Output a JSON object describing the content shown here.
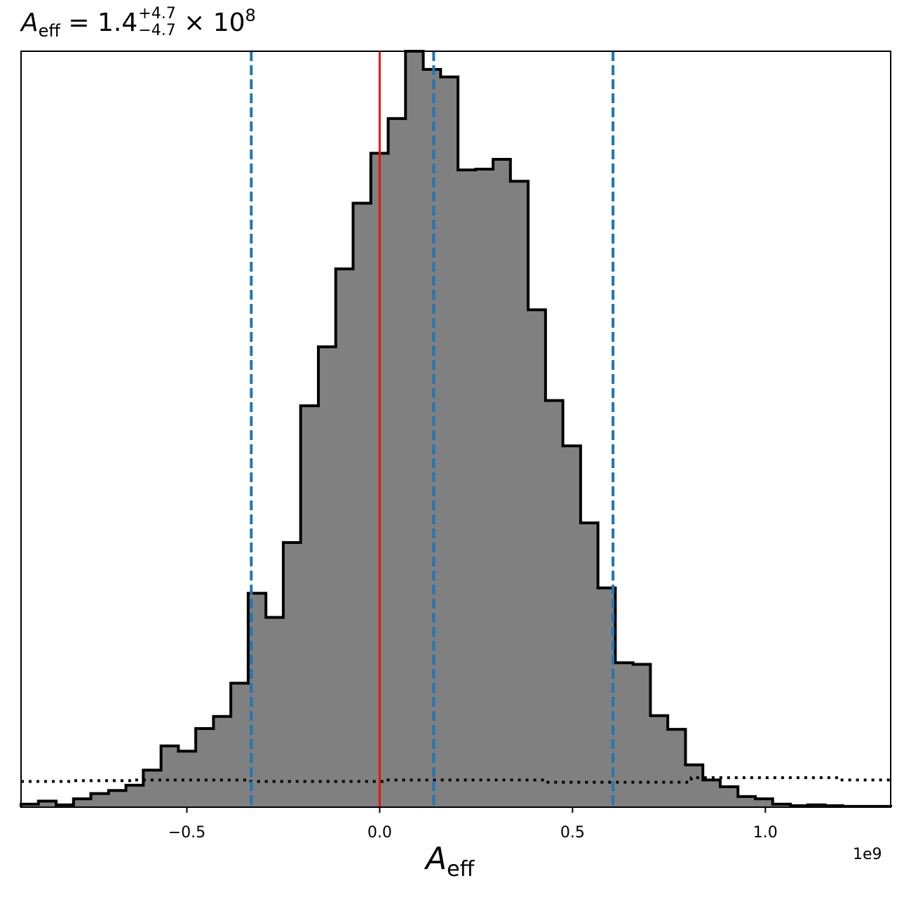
{
  "title": {
    "symbol": "A",
    "symbol_sub": "eff",
    "equals": " = 1.4",
    "upper_err": "+4.7",
    "lower_err": "−4.7",
    "times": " × 10",
    "exponent": "8"
  },
  "chart_data": {
    "type": "histogram",
    "xlabel_symbol": "A",
    "xlabel_sub": "eff",
    "x_offset_label": "1e9",
    "xlim": [
      -0.93,
      1.325
    ],
    "ylim": [
      0,
      1.0
    ],
    "y_ticks_visible": false,
    "xticks": [
      {
        "value": -0.5,
        "label": "−0.5"
      },
      {
        "value": 0.0,
        "label": "0.0"
      },
      {
        "value": 0.5,
        "label": "0.5"
      },
      {
        "value": 1.0,
        "label": "1.0"
      }
    ],
    "bin_edges": [
      -0.93,
      -0.885,
      -0.839,
      -0.794,
      -0.749,
      -0.703,
      -0.658,
      -0.613,
      -0.567,
      -0.522,
      -0.477,
      -0.431,
      -0.386,
      -0.341,
      -0.295,
      -0.25,
      -0.205,
      -0.159,
      -0.114,
      -0.069,
      -0.023,
      0.022,
      0.067,
      0.113,
      0.158,
      0.203,
      0.249,
      0.294,
      0.339,
      0.385,
      0.43,
      0.475,
      0.521,
      0.566,
      0.611,
      0.657,
      0.702,
      0.747,
      0.793,
      0.838,
      0.883,
      0.929,
      0.974,
      1.019,
      1.065,
      1.11,
      1.155,
      1.201,
      1.246,
      1.291,
      1.325
    ],
    "counts": [
      0.004,
      0.008,
      0.003,
      0.011,
      0.018,
      0.022,
      0.029,
      0.049,
      0.081,
      0.074,
      0.104,
      0.12,
      0.164,
      0.283,
      0.251,
      0.35,
      0.531,
      0.609,
      0.712,
      0.799,
      0.865,
      0.911,
      1.0,
      0.976,
      0.966,
      0.843,
      0.844,
      0.857,
      0.828,
      0.658,
      0.538,
      0.478,
      0.376,
      0.29,
      0.191,
      0.189,
      0.121,
      0.103,
      0.056,
      0.036,
      0.027,
      0.014,
      0.011,
      0.004,
      0.002,
      0.003,
      0.002,
      0.001,
      0.001,
      0.001
    ],
    "prior_edges": [
      -0.93,
      -0.793,
      -0.634,
      -0.392,
      -0.341,
      0.022,
      0.39,
      0.427,
      0.79,
      0.808,
      1.194,
      1.325
    ],
    "prior_levels": [
      0.034,
      0.035,
      0.036,
      0.036,
      0.034,
      0.036,
      0.036,
      0.033,
      0.033,
      0.039,
      0.036
    ],
    "true_value": 0.0,
    "quantile_lines": [
      -0.333,
      0.14,
      0.605
    ],
    "colors": {
      "hist_fill": "#808080",
      "hist_edge": "#000000",
      "true_line": "#ee1111",
      "quantile_line": "#1f77b4",
      "prior_line": "#000000"
    }
  }
}
